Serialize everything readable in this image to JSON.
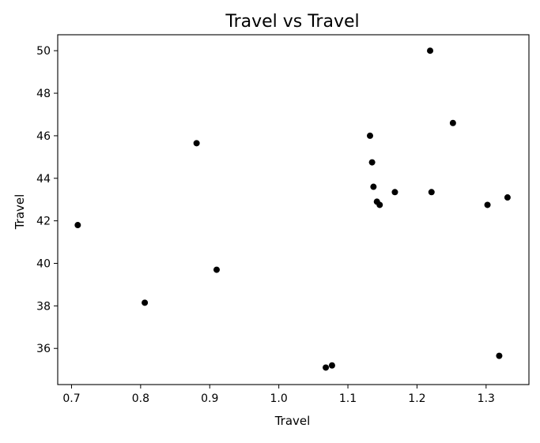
{
  "chart_data": {
    "type": "scatter",
    "title": "Travel vs Travel",
    "xlabel": "Travel",
    "ylabel": "Travel",
    "xlim": [
      0.68,
      1.362
    ],
    "ylim": [
      34.3,
      50.75
    ],
    "xticks": [
      0.7,
      0.8,
      0.9,
      1.0,
      1.1,
      1.2,
      1.3
    ],
    "xtick_labels": [
      "0.7",
      "0.8",
      "0.9",
      "1.0",
      "1.1",
      "1.2",
      "1.3"
    ],
    "yticks": [
      36,
      38,
      40,
      42,
      44,
      46,
      48,
      50
    ],
    "ytick_labels": [
      "36",
      "38",
      "40",
      "42",
      "44",
      "46",
      "48",
      "50"
    ],
    "grid": false,
    "marker_color": "#000000",
    "points": [
      {
        "x": 0.709,
        "y": 41.8
      },
      {
        "x": 0.806,
        "y": 38.15
      },
      {
        "x": 0.881,
        "y": 45.65
      },
      {
        "x": 0.91,
        "y": 39.7
      },
      {
        "x": 1.068,
        "y": 35.1
      },
      {
        "x": 1.077,
        "y": 35.2
      },
      {
        "x": 1.132,
        "y": 46.0
      },
      {
        "x": 1.135,
        "y": 44.75
      },
      {
        "x": 1.137,
        "y": 43.6
      },
      {
        "x": 1.142,
        "y": 42.9
      },
      {
        "x": 1.146,
        "y": 42.75
      },
      {
        "x": 1.168,
        "y": 43.35
      },
      {
        "x": 1.219,
        "y": 50.0
      },
      {
        "x": 1.221,
        "y": 43.35
      },
      {
        "x": 1.252,
        "y": 46.6
      },
      {
        "x": 1.302,
        "y": 42.75
      },
      {
        "x": 1.319,
        "y": 35.65
      },
      {
        "x": 1.331,
        "y": 43.1
      }
    ]
  }
}
